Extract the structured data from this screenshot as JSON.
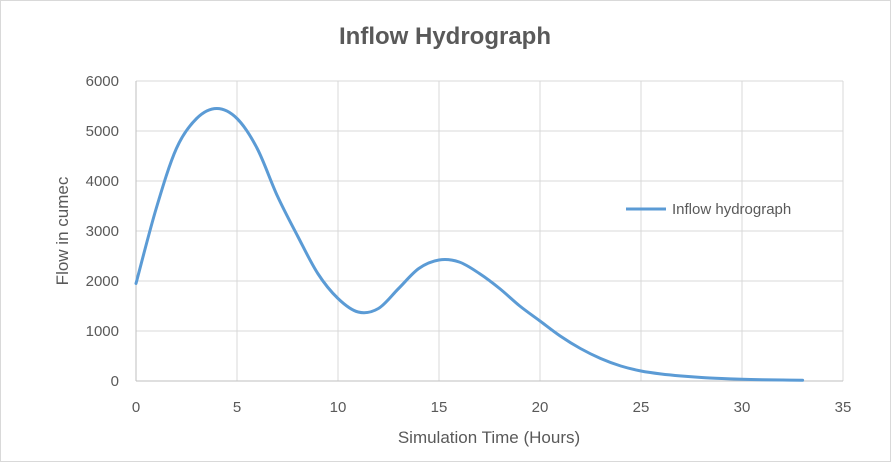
{
  "chart_data": {
    "type": "line",
    "title": "Inflow Hydrograph",
    "xlabel": "Simulation Time (Hours)",
    "ylabel": "Flow in cumec",
    "xlim": [
      0,
      35
    ],
    "ylim": [
      0,
      6000
    ],
    "x_ticks": [
      0,
      5,
      10,
      15,
      20,
      25,
      30,
      35
    ],
    "y_ticks": [
      0,
      1000,
      2000,
      3000,
      4000,
      5000,
      6000
    ],
    "grid": true,
    "legend_position": "right",
    "series": [
      {
        "name": "Inflow hydrograph",
        "color": "#5b9bd5",
        "x": [
          0,
          1,
          2,
          3,
          4,
          5,
          6,
          7,
          8,
          9,
          10,
          11,
          12,
          13,
          14,
          15,
          16,
          17,
          18,
          19,
          20,
          21,
          22,
          23,
          24,
          25,
          26,
          27,
          28,
          29,
          30,
          31,
          32,
          33
        ],
        "y": [
          1950,
          3450,
          4650,
          5250,
          5450,
          5250,
          4650,
          3700,
          2900,
          2150,
          1650,
          1380,
          1450,
          1850,
          2250,
          2420,
          2380,
          2150,
          1850,
          1500,
          1200,
          900,
          650,
          450,
          300,
          200,
          140,
          100,
          70,
          50,
          35,
          25,
          20,
          15
        ]
      }
    ]
  }
}
